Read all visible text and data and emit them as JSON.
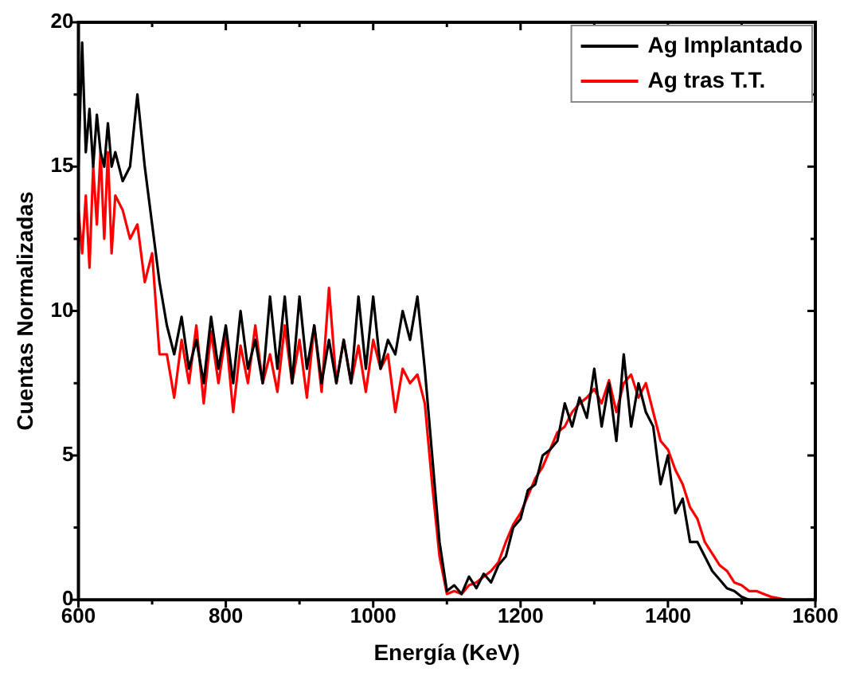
{
  "chart_data": {
    "type": "line",
    "xlabel": "Energía (KeV)",
    "ylabel": "Cuentas Normalizadas",
    "xlim": [
      600,
      1600
    ],
    "ylim": [
      0,
      20
    ],
    "xticks": [
      600,
      {
        "value": 700,
        "label": null
      },
      800,
      {
        "value": 900,
        "label": null
      },
      1000,
      {
        "value": 1100,
        "label": null
      },
      1200,
      {
        "value": 1300,
        "label": null
      },
      1400,
      {
        "value": 1500,
        "label": null
      },
      1600
    ],
    "yticks": [
      0,
      {
        "value": 2.5,
        "label": null
      },
      5,
      {
        "value": 7.5,
        "label": null
      },
      10,
      {
        "value": 12.5,
        "label": null
      },
      15,
      {
        "value": 17.5,
        "label": null
      },
      20
    ],
    "legend": "top right",
    "grid": false,
    "marker": "none",
    "line_style": "solid",
    "series": [
      {
        "name": "Ag Implantado",
        "color": "#000000",
        "x": [
          600,
          605,
          610,
          615,
          620,
          625,
          630,
          635,
          640,
          645,
          650,
          660,
          670,
          680,
          690,
          700,
          710,
          720,
          730,
          740,
          750,
          760,
          770,
          780,
          790,
          800,
          810,
          820,
          830,
          840,
          850,
          860,
          870,
          880,
          890,
          900,
          910,
          920,
          930,
          940,
          950,
          960,
          970,
          980,
          990,
          1000,
          1010,
          1020,
          1030,
          1040,
          1050,
          1060,
          1070,
          1080,
          1090,
          1100,
          1110,
          1120,
          1130,
          1140,
          1150,
          1160,
          1170,
          1180,
          1190,
          1200,
          1210,
          1220,
          1230,
          1240,
          1250,
          1260,
          1270,
          1280,
          1290,
          1300,
          1310,
          1320,
          1330,
          1340,
          1350,
          1360,
          1370,
          1380,
          1390,
          1400,
          1410,
          1420,
          1430,
          1440,
          1450,
          1460,
          1470,
          1480,
          1490,
          1500,
          1510
        ],
        "values": [
          15,
          19.3,
          15.5,
          17,
          15,
          16.8,
          15.5,
          15,
          16.5,
          15,
          15.5,
          14.5,
          15,
          17.5,
          15,
          13,
          11,
          9.5,
          8.5,
          9.8,
          8,
          9,
          7.5,
          9.8,
          8,
          9.5,
          7.5,
          10,
          8,
          9,
          7.5,
          10.5,
          8,
          10.5,
          7.5,
          10.5,
          8,
          9.5,
          7.5,
          9,
          7.5,
          9,
          7.5,
          10.5,
          8,
          10.5,
          8,
          9,
          8.5,
          10,
          9,
          10.5,
          8,
          5,
          2,
          0.3,
          0.5,
          0.2,
          0.8,
          0.4,
          0.9,
          0.6,
          1.2,
          1.5,
          2.5,
          2.8,
          3.8,
          4,
          5,
          5.2,
          5.5,
          6.8,
          6,
          7,
          6.3,
          8,
          6,
          7.5,
          5.5,
          8.5,
          6,
          7.5,
          6.5,
          6,
          4,
          5,
          3,
          3.5,
          2,
          2,
          1.5,
          1,
          0.7,
          0.4,
          0.3,
          0.1,
          0
        ]
      },
      {
        "name": "Ag tras T.T.",
        "color": "#ff0000",
        "x": [
          600,
          605,
          610,
          615,
          620,
          625,
          630,
          635,
          640,
          645,
          650,
          660,
          670,
          680,
          690,
          700,
          710,
          720,
          730,
          740,
          750,
          760,
          770,
          780,
          790,
          800,
          810,
          820,
          830,
          840,
          850,
          860,
          870,
          880,
          890,
          900,
          910,
          920,
          930,
          940,
          950,
          960,
          970,
          980,
          990,
          1000,
          1010,
          1020,
          1030,
          1040,
          1050,
          1060,
          1070,
          1080,
          1090,
          1100,
          1110,
          1120,
          1130,
          1140,
          1150,
          1160,
          1170,
          1180,
          1190,
          1200,
          1210,
          1220,
          1230,
          1240,
          1250,
          1260,
          1270,
          1280,
          1290,
          1300,
          1310,
          1320,
          1330,
          1340,
          1350,
          1360,
          1370,
          1380,
          1390,
          1400,
          1410,
          1420,
          1430,
          1440,
          1450,
          1460,
          1470,
          1480,
          1490,
          1500,
          1510,
          1520,
          1530,
          1540,
          1550,
          1560
        ],
        "values": [
          13.5,
          12,
          14,
          11.5,
          15,
          13,
          15.5,
          12.5,
          15.5,
          12,
          14,
          13.5,
          12.5,
          13,
          11,
          12,
          8.5,
          8.5,
          7,
          9,
          7.5,
          9.5,
          6.8,
          9.3,
          7.5,
          9.2,
          6.5,
          8.8,
          7.5,
          9.5,
          7.5,
          8.5,
          7.2,
          9.5,
          7.5,
          9,
          7,
          9.5,
          7.2,
          10.8,
          7.5,
          9,
          7.5,
          8.8,
          7.2,
          9,
          8,
          8.5,
          6.5,
          8,
          7.5,
          7.8,
          6.8,
          4,
          1.5,
          0.2,
          0.3,
          0.2,
          0.5,
          0.6,
          0.8,
          1,
          1.3,
          2,
          2.6,
          3,
          3.6,
          4.2,
          4.6,
          5.2,
          5.8,
          6,
          6.5,
          6.8,
          7,
          7.3,
          6.8,
          7.6,
          6.5,
          7.5,
          7.8,
          7,
          7.5,
          6.5,
          5.5,
          5.2,
          4.5,
          4,
          3.2,
          2.8,
          2,
          1.6,
          1.2,
          1,
          0.6,
          0.5,
          0.3,
          0.3,
          0.2,
          0.1,
          0.05,
          0
        ]
      }
    ]
  }
}
